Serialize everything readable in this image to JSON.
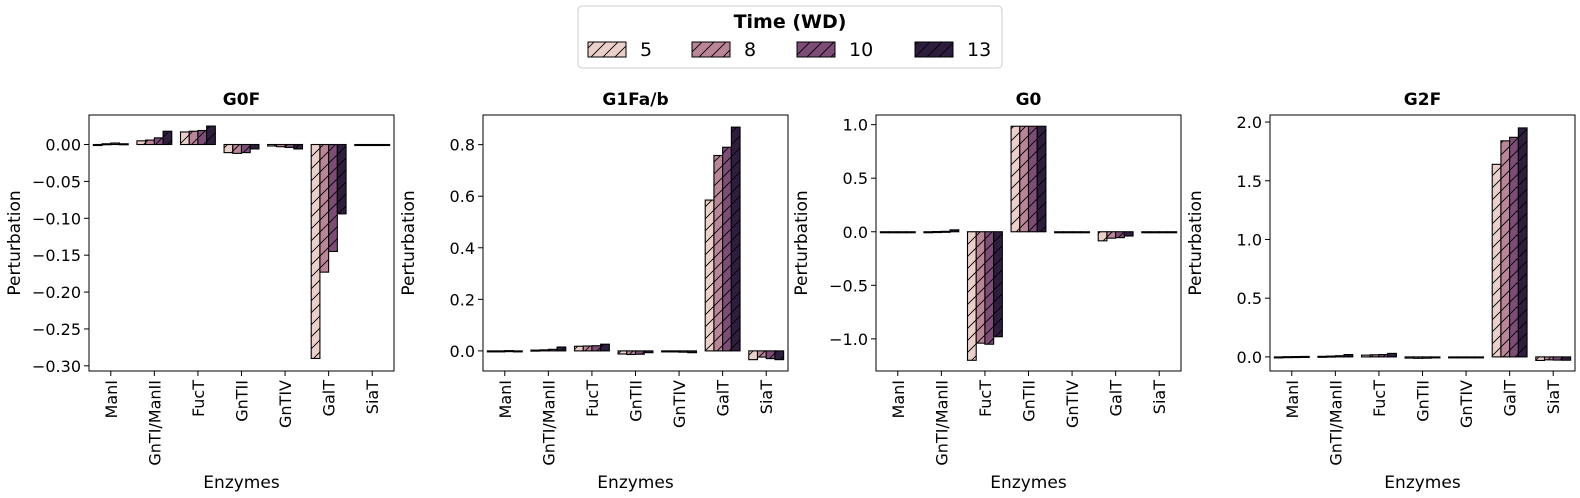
{
  "legend": {
    "title": "Time (WD)",
    "entries": [
      "5",
      "8",
      "10",
      "13"
    ],
    "colors": [
      "#ead0c9",
      "#b98597",
      "#7d4d78",
      "#2d1e3e"
    ]
  },
  "chart_data": [
    {
      "type": "bar",
      "title": "G0F",
      "xlabel": "Enzymes",
      "ylabel": "Perturbation",
      "categories": [
        "ManI",
        "GnTI/ManII",
        "FucT",
        "GnTII",
        "GnTIV",
        "GalT",
        "SiaT"
      ],
      "ylim": [
        -0.307,
        0.04
      ],
      "yticks": [
        0.0,
        -0.05,
        -0.1,
        -0.15,
        -0.2,
        -0.25,
        -0.3
      ],
      "yticklabels": [
        "0.00",
        "−0.05",
        "−0.10",
        "−0.15",
        "−0.20",
        "−0.25",
        "−0.30"
      ],
      "series": [
        {
          "name": "5",
          "values": [
            0.0,
            0.005,
            0.017,
            -0.011,
            -0.002,
            -0.29,
            0.0
          ]
        },
        {
          "name": "8",
          "values": [
            0.001,
            0.006,
            0.018,
            -0.012,
            -0.003,
            -0.173,
            0.0
          ]
        },
        {
          "name": "10",
          "values": [
            0.002,
            0.009,
            0.019,
            -0.011,
            -0.004,
            -0.145,
            0.0
          ]
        },
        {
          "name": "13",
          "values": [
            0.001,
            0.018,
            0.025,
            -0.006,
            -0.006,
            -0.094,
            0.0
          ]
        }
      ]
    },
    {
      "type": "bar",
      "title": "G1Fa/b",
      "xlabel": "Enzymes",
      "ylabel": "Perturbation",
      "categories": [
        "ManI",
        "GnTI/ManII",
        "FucT",
        "GnTII",
        "GnTIV",
        "GalT",
        "SiaT"
      ],
      "ylim": [
        -0.078,
        0.915
      ],
      "yticks": [
        0.0,
        0.2,
        0.4,
        0.6,
        0.8
      ],
      "yticklabels": [
        "0.0",
        "0.2",
        "0.4",
        "0.6",
        "0.8"
      ],
      "series": [
        {
          "name": "5",
          "values": [
            0.0,
            0.003,
            0.018,
            -0.012,
            -0.003,
            0.585,
            -0.034
          ]
        },
        {
          "name": "8",
          "values": [
            0.0,
            0.004,
            0.019,
            -0.014,
            -0.004,
            0.758,
            -0.024
          ]
        },
        {
          "name": "10",
          "values": [
            0.001,
            0.006,
            0.02,
            -0.013,
            -0.005,
            0.79,
            -0.03
          ]
        },
        {
          "name": "13",
          "values": [
            0.0,
            0.015,
            0.026,
            -0.007,
            -0.007,
            0.868,
            -0.034
          ]
        }
      ]
    },
    {
      "type": "bar",
      "title": "G0",
      "xlabel": "Enzymes",
      "ylabel": "Perturbation",
      "categories": [
        "ManI",
        "GnTI/ManII",
        "FucT",
        "GnTII",
        "GnTIV",
        "GalT",
        "SiaT"
      ],
      "ylim": [
        -1.3,
        1.09
      ],
      "yticks": [
        1.0,
        0.5,
        0.0,
        -0.5,
        -1.0
      ],
      "yticklabels": [
        "1.0",
        "0.5",
        "0.0",
        "−0.5",
        "−1.0"
      ],
      "series": [
        {
          "name": "5",
          "values": [
            0.0,
            0.0,
            -1.2,
            0.985,
            0.0,
            -0.085,
            0.0
          ]
        },
        {
          "name": "8",
          "values": [
            0.0,
            0.002,
            -1.04,
            0.985,
            0.0,
            -0.06,
            0.0
          ]
        },
        {
          "name": "10",
          "values": [
            0.0,
            0.004,
            -1.05,
            0.985,
            0.0,
            -0.055,
            0.0
          ]
        },
        {
          "name": "13",
          "values": [
            0.0,
            0.018,
            -0.98,
            0.985,
            0.0,
            -0.04,
            0.0
          ]
        }
      ]
    },
    {
      "type": "bar",
      "title": "G2F",
      "xlabel": "Enzymes",
      "ylabel": "Perturbation",
      "categories": [
        "ManI",
        "GnTI/ManII",
        "FucT",
        "GnTII",
        "GnTIV",
        "GalT",
        "SiaT"
      ],
      "ylim": [
        -0.12,
        2.06
      ],
      "yticks": [
        0.0,
        0.5,
        1.0,
        1.5,
        2.0
      ],
      "yticklabels": [
        "0.0",
        "0.5",
        "1.0",
        "1.5",
        "2.0"
      ],
      "series": [
        {
          "name": "5",
          "values": [
            0.0,
            0.005,
            0.015,
            -0.01,
            0.0,
            1.64,
            -0.03
          ]
        },
        {
          "name": "8",
          "values": [
            0.002,
            0.007,
            0.018,
            -0.012,
            0.0,
            1.84,
            -0.025
          ]
        },
        {
          "name": "10",
          "values": [
            0.003,
            0.01,
            0.02,
            -0.011,
            0.0,
            1.87,
            -0.027
          ]
        },
        {
          "name": "13",
          "values": [
            0.004,
            0.02,
            0.03,
            -0.006,
            0.0,
            1.95,
            -0.028
          ]
        }
      ]
    }
  ]
}
